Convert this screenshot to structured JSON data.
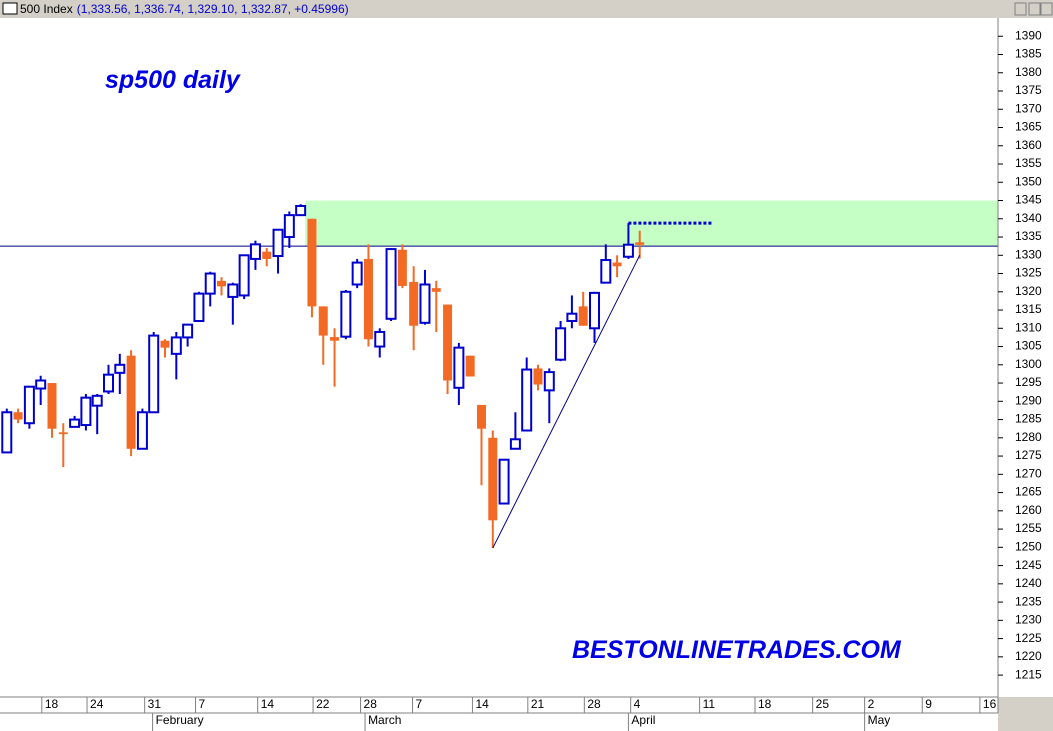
{
  "chart_data": {
    "type": "candlestick",
    "title": "sp500 daily",
    "subtitle": "500 Index",
    "quote": "(1,333.56, 1,336.74, 1,329.10, 1,332.87, +0.45996)",
    "watermark": "BESTONLINETRADES.COM",
    "up_color": "#0000cc",
    "down_color": "#f26a24",
    "x": [
      0,
      1,
      2,
      3,
      4,
      5,
      6,
      7,
      8,
      9,
      10,
      11,
      12,
      13,
      14,
      15,
      16,
      17,
      18,
      19,
      20,
      21,
      22,
      23,
      24,
      25,
      26,
      27,
      28,
      29,
      30,
      31,
      32,
      33,
      34,
      35,
      36,
      37,
      38,
      39,
      40,
      41,
      42,
      43,
      44,
      45,
      46,
      47,
      48,
      49,
      50,
      51,
      52,
      53,
      54,
      55,
      56
    ],
    "open": [
      1276,
      1287,
      1284,
      1293.5,
      1295,
      1281.5,
      1283,
      1283.5,
      1288.8,
      1292.7,
      1297.8,
      1302.5,
      1277,
      1287,
      1306.6,
      1303,
      1307.5,
      1312,
      1319.5,
      1323,
      1318.6,
      1319,
      1329,
      1331,
      1329.8,
      1335,
      1341,
      1340,
      1316,
      1307.6,
      1307.7,
      1322,
      1329,
      1305,
      1312.6,
      1331.5,
      1322.7,
      1311.5,
      1321,
      1316.5,
      1293.7,
      1302.5,
      1289,
      1280,
      1262,
      1277,
      1282,
      1299,
      1293,
      1301.4,
      1312,
      1316,
      1310,
      1322.5,
      1328,
      1329.6,
      1333.56
    ],
    "high": [
      1288,
      1288,
      1294,
      1297,
      1295,
      1284,
      1286,
      1292,
      1292,
      1300,
      1303,
      1304,
      1288,
      1309,
      1307,
      1309,
      1311,
      1320,
      1325.5,
      1324,
      1322.5,
      1330,
      1334,
      1332,
      1337,
      1342,
      1344,
      1340,
      1316,
      1310,
      1320.5,
      1329,
      1333,
      1310,
      1332,
      1333,
      1327,
      1326,
      1323,
      1316.5,
      1306,
      1302.5,
      1289,
      1282,
      1274,
      1287,
      1302,
      1300,
      1299,
      1312,
      1319,
      1320,
      1320,
      1333,
      1330,
      1338.8,
      1336.74
    ],
    "low": [
      1276,
      1284,
      1282.5,
      1289,
      1280,
      1272,
      1283,
      1282,
      1281,
      1292,
      1292,
      1275,
      1277,
      1287,
      1302,
      1296,
      1305,
      1312,
      1316,
      1319,
      1311,
      1318,
      1326,
      1327,
      1325,
      1332,
      1341,
      1313,
      1300,
      1294,
      1307,
      1321,
      1305,
      1302,
      1312,
      1321,
      1304,
      1311,
      1309,
      1292,
      1289,
      1296.8,
      1267,
      1249.8,
      1262,
      1277,
      1282,
      1293,
      1284,
      1301,
      1310,
      1310.7,
      1306,
      1322.5,
      1324,
      1329,
      1329.1
    ],
    "close": [
      1287,
      1285,
      1294,
      1295.7,
      1282.5,
      1281,
      1285,
      1291,
      1291.5,
      1297.3,
      1300,
      1277,
      1287,
      1308,
      1304.7,
      1307.5,
      1311,
      1319.5,
      1325,
      1321.5,
      1322,
      1330,
      1333,
      1329,
      1337,
      1341,
      1343.5,
      1316,
      1308,
      1306.6,
      1320,
      1328,
      1307,
      1309,
      1331.7,
      1321.6,
      1310.7,
      1322,
      1320,
      1295.7,
      1304.7,
      1296.8,
      1282.5,
      1257.4,
      1274,
      1279.6,
      1298.7,
      1294.6,
      1298,
      1310,
      1314,
      1310.7,
      1319.7,
      1328.7,
      1327,
      1332.9,
      1332.87
    ],
    "xlim": [
      -0.6,
      87.7
    ],
    "xticks": [
      {
        "value": 3.1,
        "label": "18"
      },
      {
        "value": 7.1,
        "label": "24"
      },
      {
        "value": 12.2,
        "label": "31"
      },
      {
        "value": 16.7,
        "label": "7"
      },
      {
        "value": 22.2,
        "label": "14"
      },
      {
        "value": 27.1,
        "label": "22"
      },
      {
        "value": 31.3,
        "label": "28"
      },
      {
        "value": 35.9,
        "label": "7"
      },
      {
        "value": 41.2,
        "label": "14"
      },
      {
        "value": 46.1,
        "label": "21"
      },
      {
        "value": 51.1,
        "label": "28"
      },
      {
        "value": 55.2,
        "label": "4"
      },
      {
        "value": 61.3,
        "label": "11"
      },
      {
        "value": 66.2,
        "label": "18"
      },
      {
        "value": 71.3,
        "label": "25"
      },
      {
        "value": 75.9,
        "label": "2"
      },
      {
        "value": 81.0,
        "label": "9"
      },
      {
        "value": 86.1,
        "label": "16"
      }
    ],
    "month_ticks": [
      {
        "value": 12.9,
        "label": "February"
      },
      {
        "value": 31.7,
        "label": "March"
      },
      {
        "value": 55.0,
        "label": "April"
      },
      {
        "value": 75.9,
        "label": "May"
      }
    ],
    "ylim": [
      1209,
      1395
    ],
    "yticks": [
      1215,
      1220,
      1225,
      1230,
      1235,
      1240,
      1245,
      1250,
      1255,
      1260,
      1265,
      1270,
      1275,
      1280,
      1285,
      1290,
      1295,
      1300,
      1305,
      1310,
      1315,
      1320,
      1325,
      1330,
      1335,
      1340,
      1345,
      1350,
      1355,
      1360,
      1365,
      1370,
      1375,
      1380,
      1385,
      1390
    ],
    "resistance_line": {
      "value": 1332.5,
      "color": "#000080"
    },
    "zone": {
      "from": 1332.5,
      "to": 1345,
      "x_start": 26.4,
      "color": "#b6ffb6"
    },
    "target_line": {
      "value": 1338.8,
      "x": [
        55,
        62.5
      ],
      "color": "#0000cc"
    },
    "trendline": {
      "x": [
        43,
        56
      ],
      "y": [
        1249.8,
        1330
      ],
      "color": "#000080"
    }
  }
}
